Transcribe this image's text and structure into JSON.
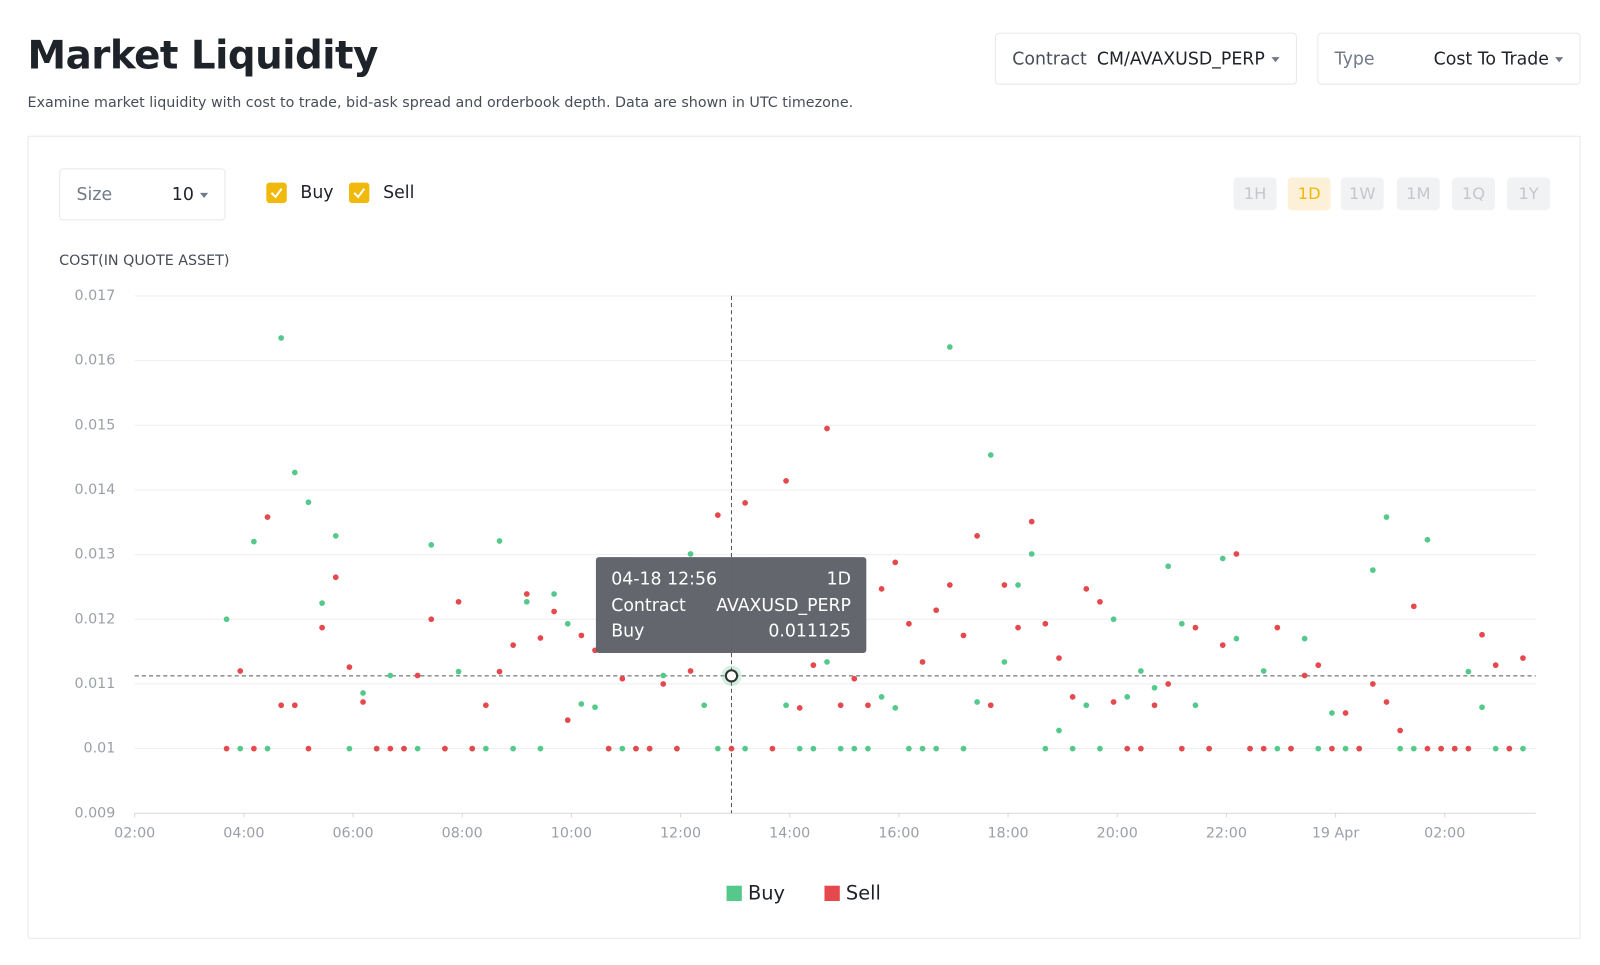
{
  "header": {
    "title": "Market Liquidity",
    "subtitle": "Examine market liquidity with cost to trade, bid-ask spread and orderbook depth. Data are shown in UTC timezone."
  },
  "filters": {
    "contract": {
      "label": "Contract",
      "value": "CM/AVAXUSD_PERP"
    },
    "type": {
      "label": "Type",
      "value": "Cost To Trade"
    }
  },
  "controls": {
    "size": {
      "label": "Size",
      "value": "10"
    },
    "periods": [
      {
        "label": "1H",
        "active": false
      },
      {
        "label": "1D",
        "active": true
      },
      {
        "label": "1W",
        "active": false
      },
      {
        "label": "1M",
        "active": false
      },
      {
        "label": "1Q",
        "active": false
      },
      {
        "label": "1Y",
        "active": false
      }
    ]
  },
  "tooltip": {
    "period": "1D",
    "contract_label": "Contract",
    "contract": "AVAXUSD_PERP",
    "index": 37
  },
  "chart_data": {
    "type": "scatter",
    "y_label": "COST(IN QUOTE ASSET)",
    "x": [
      "04-18 03:41",
      "04-18 03:56",
      "04-18 04:11",
      "04-18 04:26",
      "04-18 04:41",
      "04-18 04:56",
      "04-18 05:11",
      "04-18 05:26",
      "04-18 05:41",
      "04-18 05:56",
      "04-18 06:11",
      "04-18 06:26",
      "04-18 06:41",
      "04-18 06:56",
      "04-18 07:11",
      "04-18 07:26",
      "04-18 07:41",
      "04-18 07:56",
      "04-18 08:11",
      "04-18 08:26",
      "04-18 08:41",
      "04-18 08:56",
      "04-18 09:11",
      "04-18 09:26",
      "04-18 09:41",
      "04-18 09:56",
      "04-18 10:11",
      "04-18 10:26",
      "04-18 10:41",
      "04-18 10:56",
      "04-18 11:11",
      "04-18 11:26",
      "04-18 11:41",
      "04-18 11:56",
      "04-18 12:11",
      "04-18 12:26",
      "04-18 12:41",
      "04-18 12:56",
      "04-18 13:11",
      "04-18 13:26",
      "04-18 13:41",
      "04-18 13:56",
      "04-18 14:11",
      "04-18 14:26",
      "04-18 14:41",
      "04-18 14:56",
      "04-18 15:11",
      "04-18 15:26",
      "04-18 15:41",
      "04-18 15:56",
      "04-18 16:11",
      "04-18 16:26",
      "04-18 16:41",
      "04-18 16:56",
      "04-18 17:11",
      "04-18 17:26",
      "04-18 17:41",
      "04-18 17:56",
      "04-18 18:11",
      "04-18 18:26",
      "04-18 18:41",
      "04-18 18:56",
      "04-18 19:11",
      "04-18 19:26",
      "04-18 19:41",
      "04-18 19:56",
      "04-18 20:11",
      "04-18 20:26",
      "04-18 20:41",
      "04-18 20:56",
      "04-18 21:11",
      "04-18 21:26",
      "04-18 21:41",
      "04-18 21:56",
      "04-18 22:11",
      "04-18 22:26",
      "04-18 22:41",
      "04-18 22:56",
      "04-18 23:11",
      "04-18 23:26",
      "04-18 23:41",
      "04-18 23:56",
      "04-19 00:11",
      "04-19 00:26",
      "04-19 00:41",
      "04-19 00:56",
      "04-19 01:11",
      "04-19 01:26",
      "04-19 01:41",
      "04-19 01:56",
      "04-19 02:11",
      "04-19 02:26",
      "04-19 02:41",
      "04-19 02:56",
      "04-19 03:11",
      "04-19 03:26"
    ],
    "series": [
      {
        "name": "Buy",
        "color": "#55c98b",
        "values": [
          0.012,
          0.01,
          0.0132,
          0.01,
          0.01635,
          0.01427,
          0.01381,
          0.01225,
          0.01329,
          0.01,
          0.01086,
          0.01,
          0.01113,
          0.01,
          0.01,
          0.01315,
          0.01,
          0.01119,
          0.01,
          0.01,
          0.01321,
          0.01,
          0.01227,
          0.01,
          0.01239,
          0.01193,
          0.01069,
          0.01064,
          0.01,
          0.01,
          0.01,
          0.01,
          0.01113,
          0.01,
          0.01301,
          0.01067,
          0.01,
          0.011125,
          0.01,
          null,
          null,
          0.01067,
          0.01,
          0.01,
          0.01134,
          0.01,
          0.01,
          0.01,
          0.0108,
          0.01063,
          0.01,
          0.01,
          0.01,
          0.01621,
          0.01,
          0.01072,
          0.01454,
          0.01134,
          0.01253,
          0.01301,
          0.01,
          0.01028,
          0.01,
          0.01067,
          0.01,
          0.012,
          0.0108,
          0.0112,
          0.01094,
          0.01282,
          0.01193,
          0.01067,
          0.01,
          0.01294,
          0.0117,
          0.01,
          0.0112,
          0.01,
          0.01,
          0.0117,
          0.01,
          0.01055,
          0.01,
          0.01,
          0.01276,
          0.01358,
          0.01,
          0.01,
          0.01323,
          0.01,
          0.01,
          0.01119,
          0.01064,
          0.01,
          0.01,
          0.01
        ]
      },
      {
        "name": "Sell",
        "color": "#e5484d",
        "values": [
          0.01,
          0.0112,
          0.01,
          0.01358,
          0.01067,
          0.01067,
          0.01,
          0.01187,
          0.01265,
          0.01126,
          0.01072,
          0.01,
          0.01,
          0.01,
          0.01113,
          0.012,
          0.01,
          0.01227,
          0.01,
          0.01067,
          0.01119,
          0.0116,
          0.01239,
          0.01171,
          0.01212,
          0.01044,
          0.01175,
          0.01152,
          0.01,
          0.01108,
          0.01,
          0.01,
          0.011,
          0.01,
          0.0112,
          null,
          0.01361,
          0.01,
          0.0138,
          null,
          0.01,
          0.01414,
          0.01063,
          0.01129,
          0.01495,
          0.01067,
          0.01108,
          0.01067,
          0.01247,
          0.01288,
          0.01193,
          0.01134,
          0.01214,
          0.01253,
          0.01175,
          0.01329,
          0.01067,
          0.01253,
          0.01187,
          0.01351,
          0.01193,
          0.0114,
          0.0108,
          0.01247,
          0.01227,
          0.01072,
          0.01,
          0.01,
          0.01067,
          0.011,
          0.01,
          0.01187,
          0.01,
          0.0116,
          0.01301,
          0.01,
          0.01,
          0.01187,
          0.01,
          0.01113,
          0.01129,
          0.01,
          0.01055,
          0.01,
          0.011,
          0.01072,
          0.01028,
          0.0122,
          0.01,
          0.01,
          0.01,
          0.01,
          0.01176,
          0.01129,
          0.01,
          0.0114
        ]
      }
    ],
    "xlim": [
      "04-18 02:00",
      "04-19 03:40"
    ],
    "xticks": [
      {
        "value": "04-18 02:00",
        "label": "02:00"
      },
      {
        "value": "04-18 04:00",
        "label": "04:00"
      },
      {
        "value": "04-18 06:00",
        "label": "06:00"
      },
      {
        "value": "04-18 08:00",
        "label": "08:00"
      },
      {
        "value": "04-18 10:00",
        "label": "10:00"
      },
      {
        "value": "04-18 12:00",
        "label": "12:00"
      },
      {
        "value": "04-18 14:00",
        "label": "14:00"
      },
      {
        "value": "04-18 16:00",
        "label": "16:00"
      },
      {
        "value": "04-18 18:00",
        "label": "18:00"
      },
      {
        "value": "04-18 20:00",
        "label": "20:00"
      },
      {
        "value": "04-18 22:00",
        "label": "22:00"
      },
      {
        "value": "04-19 00:00",
        "label": "19 Apr"
      },
      {
        "value": "04-19 02:00",
        "label": "02:00"
      }
    ],
    "ylim": [
      0.009,
      0.017
    ],
    "yticks": [
      0.009,
      0.01,
      0.011,
      0.012,
      0.013,
      0.014,
      0.015,
      0.016,
      0.017
    ],
    "grid": true,
    "legend": "bottom"
  }
}
